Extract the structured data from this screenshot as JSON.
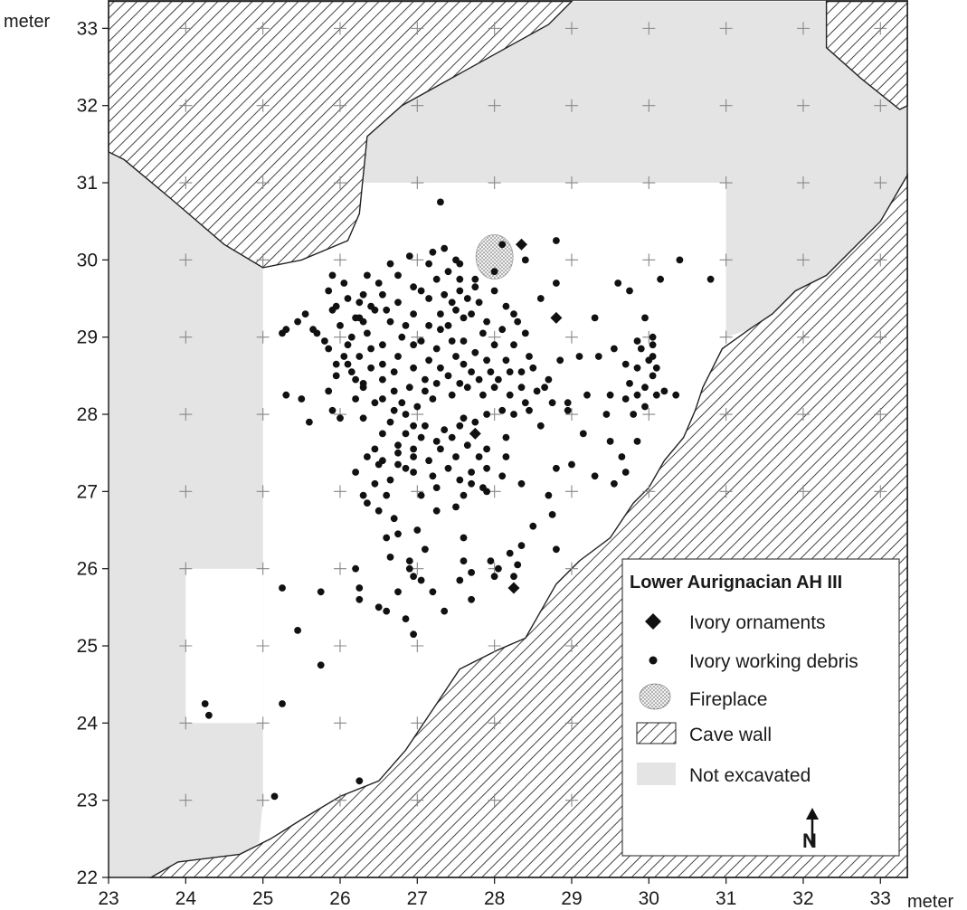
{
  "map": {
    "x_unit": "meter",
    "y_unit": "meter",
    "xlim": [
      23,
      33.35
    ],
    "ylim": [
      22,
      33.35
    ],
    "x_ticks": [
      "23",
      "24",
      "25",
      "26",
      "27",
      "28",
      "29",
      "30",
      "31",
      "32",
      "33"
    ],
    "y_ticks": [
      "22",
      "23",
      "24",
      "25",
      "26",
      "27",
      "28",
      "29",
      "30",
      "31",
      "32",
      "33"
    ]
  },
  "legend": {
    "title": "Lower Aurignacian AH III",
    "ornaments": "Ivory ornaments",
    "debris": "Ivory working debris",
    "fireplace": "Fireplace",
    "cave_wall": "Cave wall",
    "not_excavated": "Not excavated",
    "north_letter": "N"
  },
  "colors": {
    "not_excavated": "#e4e4e4",
    "points": "#111111",
    "hatch": "#222222"
  },
  "chart_data": {
    "type": "scatter",
    "x_label": "meter",
    "y_label": "meter",
    "fireplace": {
      "center": [
        28.0,
        30.04
      ],
      "radius_m": 0.24
    },
    "cave_walls": [
      [
        [
          23,
          33.35
        ],
        [
          29.0,
          33.35
        ],
        [
          28.7,
          33.05
        ],
        [
          26.8,
          32.0
        ],
        [
          26.35,
          31.6
        ],
        [
          26.25,
          30.6
        ],
        [
          26.1,
          30.25
        ],
        [
          25.5,
          30.0
        ],
        [
          25.0,
          29.9
        ],
        [
          24.5,
          30.2
        ],
        [
          23.8,
          30.8
        ],
        [
          23.2,
          31.3
        ],
        [
          23,
          31.4
        ]
      ],
      [
        [
          32.3,
          33.35
        ],
        [
          33.35,
          33.35
        ],
        [
          33.35,
          32.0
        ],
        [
          33.25,
          31.95
        ],
        [
          32.75,
          32.35
        ],
        [
          32.3,
          32.75
        ]
      ],
      [
        [
          23.55,
          22
        ],
        [
          23.9,
          22.2
        ],
        [
          24.3,
          22.25
        ],
        [
          24.7,
          22.3
        ],
        [
          25.1,
          22.5
        ],
        [
          25.5,
          22.75
        ],
        [
          26.0,
          23.05
        ],
        [
          26.5,
          23.25
        ],
        [
          26.85,
          23.65
        ],
        [
          27.25,
          24.25
        ],
        [
          27.55,
          24.7
        ],
        [
          28.05,
          24.95
        ],
        [
          28.4,
          25.1
        ],
        [
          28.8,
          25.8
        ],
        [
          29.1,
          26.1
        ],
        [
          29.5,
          26.4
        ],
        [
          29.8,
          26.85
        ],
        [
          30.0,
          27.05
        ],
        [
          30.2,
          27.4
        ],
        [
          30.45,
          27.7
        ],
        [
          30.6,
          28.05
        ],
        [
          30.7,
          28.35
        ],
        [
          30.8,
          28.55
        ],
        [
          30.95,
          28.85
        ],
        [
          31.3,
          29.1
        ],
        [
          31.6,
          29.3
        ],
        [
          31.9,
          29.6
        ],
        [
          32.3,
          29.8
        ],
        [
          32.7,
          30.2
        ],
        [
          33.0,
          30.5
        ],
        [
          33.35,
          31.1
        ],
        [
          33.35,
          22
        ]
      ]
    ],
    "not_excavated": [
      [
        [
          23,
          31.4
        ],
        [
          23.2,
          31.3
        ],
        [
          23.8,
          30.8
        ],
        [
          24.5,
          30.2
        ],
        [
          25.0,
          29.9
        ],
        [
          25.0,
          23.0
        ],
        [
          24.95,
          22.45
        ],
        [
          24.7,
          22.3
        ],
        [
          24.3,
          22.25
        ],
        [
          23.9,
          22.2
        ],
        [
          23.55,
          22
        ],
        [
          23,
          22
        ]
      ],
      [
        [
          26.25,
          30.6
        ],
        [
          26.35,
          31.6
        ],
        [
          26.8,
          32.0
        ],
        [
          28.7,
          33.05
        ],
        [
          29.0,
          33.35
        ],
        [
          32.3,
          33.35
        ],
        [
          32.3,
          32.75
        ],
        [
          32.75,
          32.35
        ],
        [
          33.25,
          31.95
        ],
        [
          33.35,
          32.0
        ],
        [
          33.35,
          31.1
        ],
        [
          33.0,
          30.5
        ],
        [
          32.7,
          30.2
        ],
        [
          32.3,
          29.8
        ],
        [
          31.9,
          29.6
        ],
        [
          31.6,
          29.3
        ],
        [
          31.3,
          29.1
        ],
        [
          31.0,
          29.0
        ],
        [
          31.0,
          31.0
        ],
        [
          26.25,
          31.0
        ]
      ]
    ],
    "excavated_pit": [
      [
        24.0,
        26.0
      ],
      [
        25.0,
        26.0
      ],
      [
        25.0,
        24.0
      ],
      [
        24.0,
        24.0
      ]
    ],
    "ornaments": [
      [
        28.35,
        30.2
      ],
      [
        28.8,
        29.25
      ],
      [
        27.75,
        27.75
      ],
      [
        28.25,
        25.75
      ]
    ],
    "debris": [
      [
        27.3,
        30.75
      ],
      [
        28.8,
        30.25
      ],
      [
        28.1,
        30.2
      ],
      [
        28.4,
        30.0
      ],
      [
        30.4,
        30.0
      ],
      [
        30.8,
        29.75
      ],
      [
        29.6,
        29.7
      ],
      [
        30.15,
        29.75
      ],
      [
        29.75,
        29.6
      ],
      [
        28.8,
        29.7
      ],
      [
        28.6,
        29.5
      ],
      [
        29.3,
        29.25
      ],
      [
        29.95,
        29.25
      ],
      [
        25.55,
        29.3
      ],
      [
        25.45,
        29.2
      ],
      [
        25.3,
        29.1
      ],
      [
        25.25,
        29.05
      ],
      [
        25.9,
        29.8
      ],
      [
        26.1,
        29.5
      ],
      [
        25.9,
        29.35
      ],
      [
        26.15,
        29.0
      ],
      [
        25.95,
        28.65
      ],
      [
        25.85,
        28.3
      ],
      [
        25.5,
        28.2
      ],
      [
        25.3,
        28.25
      ],
      [
        25.9,
        28.05
      ],
      [
        26.0,
        27.95
      ],
      [
        25.6,
        27.9
      ],
      [
        26.2,
        28.2
      ],
      [
        26.3,
        27.95
      ],
      [
        26.55,
        28.2
      ],
      [
        29.2,
        28.25
      ],
      [
        28.95,
        28.05
      ],
      [
        29.45,
        28.0
      ],
      [
        29.5,
        28.25
      ],
      [
        29.15,
        27.75
      ],
      [
        29.5,
        27.65
      ],
      [
        29.0,
        27.35
      ],
      [
        28.8,
        27.3
      ],
      [
        29.3,
        27.2
      ],
      [
        29.65,
        27.45
      ],
      [
        29.7,
        27.25
      ],
      [
        29.85,
        27.65
      ],
      [
        29.55,
        27.1
      ],
      [
        28.7,
        26.95
      ],
      [
        28.75,
        26.7
      ],
      [
        28.5,
        26.55
      ],
      [
        28.35,
        26.3
      ],
      [
        28.2,
        26.2
      ],
      [
        28.3,
        26.05
      ],
      [
        28.05,
        26.0
      ],
      [
        27.95,
        26.1
      ],
      [
        28.0,
        25.9
      ],
      [
        28.25,
        25.9
      ],
      [
        28.8,
        26.25
      ],
      [
        28.35,
        27.1
      ],
      [
        28.1,
        27.2
      ],
      [
        27.9,
        27.0
      ],
      [
        27.6,
        26.4
      ],
      [
        27.6,
        26.1
      ],
      [
        27.55,
        25.85
      ],
      [
        27.7,
        25.95
      ],
      [
        27.7,
        25.6
      ],
      [
        27.2,
        25.7
      ],
      [
        27.35,
        25.45
      ],
      [
        27.05,
        25.85
      ],
      [
        26.95,
        25.9
      ],
      [
        26.9,
        26.1
      ],
      [
        26.75,
        25.7
      ],
      [
        26.85,
        25.35
      ],
      [
        26.95,
        25.15
      ],
      [
        26.6,
        25.45
      ],
      [
        26.5,
        25.5
      ],
      [
        26.25,
        25.75
      ],
      [
        26.2,
        26.0
      ],
      [
        26.25,
        25.6
      ],
      [
        26.75,
        26.45
      ],
      [
        26.9,
        26.0
      ],
      [
        25.75,
        25.7
      ],
      [
        25.25,
        25.75
      ],
      [
        25.45,
        25.2
      ],
      [
        25.75,
        24.75
      ],
      [
        25.25,
        24.25
      ],
      [
        26.25,
        23.25
      ],
      [
        25.15,
        23.05
      ],
      [
        24.25,
        24.25
      ],
      [
        24.3,
        24.1
      ],
      [
        26.35,
        26.85
      ],
      [
        26.45,
        27.1
      ],
      [
        26.6,
        26.4
      ],
      [
        26.65,
        26.15
      ],
      [
        26.7,
        26.65
      ],
      [
        27.0,
        26.5
      ],
      [
        27.1,
        26.25
      ],
      [
        27.25,
        26.75
      ],
      [
        27.5,
        26.8
      ],
      [
        27.6,
        26.95
      ],
      [
        27.85,
        27.05
      ],
      [
        27.55,
        27.15
      ],
      [
        27.25,
        27.05
      ],
      [
        27.05,
        26.95
      ],
      [
        26.85,
        27.3
      ],
      [
        26.55,
        27.4
      ],
      [
        26.45,
        27.55
      ],
      [
        26.75,
        27.5
      ],
      [
        26.95,
        27.55
      ],
      [
        26.85,
        27.75
      ],
      [
        27.1,
        27.85
      ],
      [
        27.35,
        27.8
      ],
      [
        27.55,
        27.85
      ],
      [
        27.75,
        27.9
      ],
      [
        27.9,
        28.0
      ],
      [
        28.15,
        27.7
      ],
      [
        28.1,
        28.05
      ],
      [
        28.35,
        28.35
      ],
      [
        28.5,
        28.6
      ],
      [
        28.7,
        28.45
      ],
      [
        28.85,
        28.7
      ],
      [
        29.1,
        28.75
      ],
      [
        29.35,
        28.75
      ],
      [
        29.7,
        28.65
      ],
      [
        29.75,
        28.4
      ],
      [
        29.7,
        28.2
      ],
      [
        29.85,
        28.25
      ],
      [
        29.95,
        28.35
      ],
      [
        30.05,
        28.5
      ],
      [
        30.2,
        28.3
      ],
      [
        30.35,
        28.25
      ],
      [
        29.8,
        28.0
      ],
      [
        29.95,
        28.1
      ],
      [
        30.1,
        28.25
      ],
      [
        29.85,
        28.6
      ],
      [
        30.0,
        28.7
      ],
      [
        29.9,
        28.85
      ],
      [
        29.85,
        28.95
      ],
      [
        30.05,
        28.75
      ],
      [
        29.55,
        28.85
      ],
      [
        30.05,
        29.0
      ],
      [
        30.05,
        28.9
      ],
      [
        30.1,
        28.6
      ],
      [
        28.95,
        28.15
      ],
      [
        27.55,
        29.6
      ],
      [
        27.7,
        29.3
      ],
      [
        27.45,
        29.45
      ],
      [
        27.3,
        29.1
      ],
      [
        27.45,
        28.95
      ],
      [
        27.6,
        28.95
      ],
      [
        27.75,
        28.8
      ],
      [
        27.95,
        28.55
      ],
      [
        28.15,
        28.7
      ],
      [
        28.0,
        28.9
      ],
      [
        27.85,
        29.05
      ],
      [
        27.6,
        28.65
      ],
      [
        27.4,
        28.5
      ],
      [
        27.25,
        28.4
      ],
      [
        27.45,
        28.25
      ],
      [
        27.65,
        28.35
      ],
      [
        27.85,
        28.25
      ],
      [
        28.0,
        28.35
      ],
      [
        27.2,
        28.2
      ],
      [
        27.0,
        28.1
      ],
      [
        26.8,
        28.15
      ],
      [
        26.7,
        28.3
      ],
      [
        26.55,
        28.45
      ],
      [
        26.4,
        28.6
      ],
      [
        26.25,
        28.75
      ],
      [
        26.1,
        28.9
      ],
      [
        26.35,
        29.05
      ],
      [
        26.55,
        28.9
      ],
      [
        26.75,
        28.75
      ],
      [
        26.95,
        28.6
      ],
      [
        27.1,
        28.45
      ],
      [
        27.15,
        28.7
      ],
      [
        26.95,
        28.9
      ],
      [
        26.8,
        29.0
      ],
      [
        26.65,
        29.2
      ],
      [
        26.45,
        29.35
      ],
      [
        26.25,
        29.45
      ],
      [
        26.55,
        29.55
      ],
      [
        26.75,
        29.45
      ],
      [
        26.95,
        29.3
      ],
      [
        27.15,
        29.15
      ],
      [
        27.3,
        29.3
      ],
      [
        27.15,
        29.5
      ],
      [
        26.95,
        29.65
      ],
      [
        26.75,
        29.8
      ],
      [
        26.5,
        29.7
      ],
      [
        26.35,
        29.8
      ],
      [
        26.65,
        29.95
      ],
      [
        26.9,
        30.05
      ],
      [
        27.15,
        29.95
      ],
      [
        27.4,
        29.85
      ],
      [
        27.55,
        29.95
      ],
      [
        27.75,
        29.75
      ],
      [
        28.0,
        29.6
      ],
      [
        28.15,
        29.4
      ],
      [
        28.3,
        29.2
      ],
      [
        28.4,
        29.05
      ],
      [
        28.25,
        28.9
      ],
      [
        28.45,
        28.75
      ],
      [
        28.2,
        28.55
      ],
      [
        27.2,
        30.1
      ],
      [
        27.35,
        30.15
      ],
      [
        27.5,
        30.0
      ],
      [
        26.85,
        29.15
      ],
      [
        27.05,
        28.95
      ],
      [
        26.3,
        28.4
      ],
      [
        26.15,
        28.55
      ],
      [
        26.05,
        28.75
      ],
      [
        25.85,
        28.85
      ],
      [
        26.55,
        28.65
      ],
      [
        26.4,
        28.85
      ],
      [
        26.7,
        28.55
      ],
      [
        26.9,
        28.35
      ],
      [
        27.1,
        28.3
      ],
      [
        27.3,
        28.6
      ],
      [
        27.5,
        28.75
      ],
      [
        27.7,
        28.55
      ],
      [
        27.9,
        28.7
      ],
      [
        28.05,
        28.45
      ],
      [
        28.2,
        28.25
      ],
      [
        27.55,
        28.4
      ],
      [
        27.8,
        28.45
      ],
      [
        27.25,
        28.85
      ],
      [
        27.4,
        29.15
      ],
      [
        27.6,
        29.25
      ],
      [
        27.8,
        29.45
      ],
      [
        27.9,
        29.2
      ],
      [
        28.1,
        29.1
      ],
      [
        28.25,
        29.3
      ],
      [
        27.65,
        29.5
      ],
      [
        27.5,
        29.35
      ],
      [
        26.55,
        27.75
      ],
      [
        26.65,
        27.9
      ],
      [
        26.75,
        27.6
      ],
      [
        26.95,
        27.45
      ],
      [
        27.15,
        27.4
      ],
      [
        27.3,
        27.55
      ],
      [
        27.5,
        27.45
      ],
      [
        27.65,
        27.6
      ],
      [
        27.8,
        27.45
      ],
      [
        27.9,
        27.3
      ],
      [
        27.7,
        27.25
      ],
      [
        27.4,
        27.3
      ],
      [
        27.2,
        27.2
      ],
      [
        26.95,
        27.25
      ],
      [
        26.75,
        27.35
      ],
      [
        27.05,
        27.7
      ],
      [
        27.25,
        27.65
      ],
      [
        26.95,
        27.85
      ],
      [
        27.45,
        27.7
      ],
      [
        27.6,
        27.95
      ],
      [
        26.85,
        28.0
      ],
      [
        26.7,
        28.05
      ],
      [
        27.7,
        27.1
      ],
      [
        27.9,
        27.55
      ],
      [
        28.15,
        27.45
      ],
      [
        26.65,
        27.15
      ],
      [
        26.6,
        26.95
      ],
      [
        26.5,
        26.75
      ],
      [
        26.3,
        26.95
      ],
      [
        26.2,
        27.25
      ],
      [
        26.35,
        27.45
      ],
      [
        26.5,
        27.35
      ],
      [
        25.65,
        29.1
      ],
      [
        25.8,
        28.95
      ],
      [
        26.0,
        29.15
      ],
      [
        26.2,
        29.25
      ],
      [
        26.3,
        29.55
      ],
      [
        26.05,
        29.7
      ],
      [
        25.85,
        29.6
      ],
      [
        26.25,
        29.25
      ],
      [
        25.7,
        29.05
      ],
      [
        25.95,
        29.4
      ],
      [
        26.4,
        29.4
      ],
      [
        26.6,
        29.35
      ],
      [
        26.3,
        29.2
      ],
      [
        26.1,
        28.65
      ],
      [
        26.3,
        28.35
      ],
      [
        26.45,
        28.15
      ],
      [
        26.2,
        28.45
      ],
      [
        25.95,
        28.5
      ],
      [
        27.35,
        29.55
      ],
      [
        27.55,
        29.75
      ],
      [
        27.75,
        29.65
      ],
      [
        28.0,
        29.85
      ],
      [
        27.25,
        29.75
      ],
      [
        27.05,
        29.6
      ],
      [
        28.35,
        28.55
      ],
      [
        28.55,
        28.3
      ],
      [
        28.45,
        28.05
      ],
      [
        28.6,
        27.85
      ],
      [
        28.25,
        28.0
      ],
      [
        28.4,
        28.15
      ],
      [
        28.75,
        28.15
      ],
      [
        28.65,
        28.35
      ]
    ]
  }
}
